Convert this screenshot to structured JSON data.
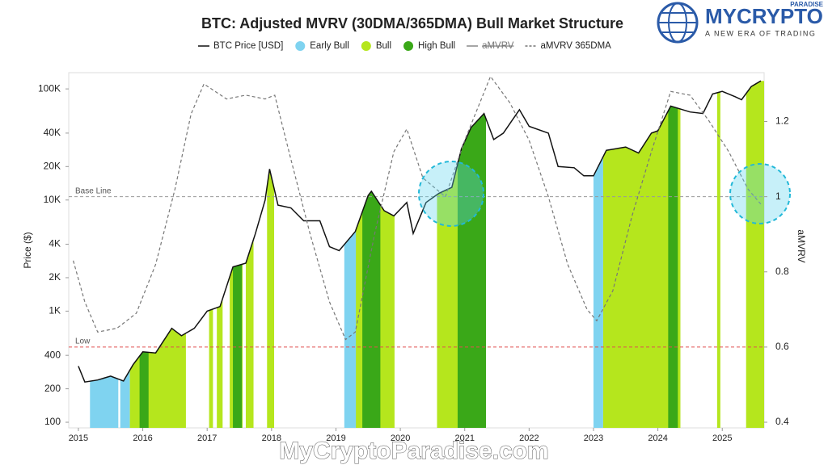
{
  "chart_data": {
    "type": "line",
    "title": "BTC: Adjusted MVRV (30DMA/365DMA) Bull Market Structure",
    "ylabel": "Price ($)",
    "y2label": "aMVRV",
    "log_y": true,
    "xlim": [
      2014.85,
      2025.65
    ],
    "xticks": [
      2015,
      2016,
      2017,
      2018,
      2019,
      2020,
      2021,
      2022,
      2023,
      2024,
      2025
    ],
    "ylim": [
      89,
      140000
    ],
    "yticks": [
      100,
      200,
      400,
      {
        "value": 1000,
        "label": "1K"
      },
      {
        "value": 2000,
        "label": "2K"
      },
      {
        "value": 4000,
        "label": "4K"
      },
      {
        "value": 10000,
        "label": "10K"
      },
      {
        "value": 20000,
        "label": "20K"
      },
      {
        "value": 40000,
        "label": "40K"
      },
      {
        "value": 100000,
        "label": "100K"
      }
    ],
    "y2lim": [
      0.385,
      1.33
    ],
    "y2ticks": [
      0.4,
      0.6,
      0.8,
      1,
      1.2
    ],
    "series": [
      {
        "name": "BTC Price [USD]",
        "color": "#111111",
        "style": "solid",
        "x": [
          2015.0,
          2015.1,
          2015.3,
          2015.5,
          2015.7,
          2015.85,
          2016.0,
          2016.2,
          2016.45,
          2016.6,
          2016.8,
          2017.0,
          2017.2,
          2017.4,
          2017.6,
          2017.75,
          2017.9,
          2017.97,
          2018.1,
          2018.3,
          2018.5,
          2018.75,
          2018.9,
          2019.05,
          2019.3,
          2019.5,
          2019.55,
          2019.75,
          2019.9,
          2020.1,
          2020.2,
          2020.4,
          2020.6,
          2020.8,
          2020.95,
          2021.1,
          2021.3,
          2021.45,
          2021.6,
          2021.85,
          2022.0,
          2022.3,
          2022.45,
          2022.7,
          2022.85,
          2023.0,
          2023.2,
          2023.5,
          2023.7,
          2023.9,
          2024.0,
          2024.2,
          2024.5,
          2024.7,
          2024.85,
          2025.0,
          2025.2,
          2025.3,
          2025.45,
          2025.6
        ],
        "values": [
          320,
          230,
          240,
          260,
          235,
          330,
          430,
          420,
          700,
          600,
          700,
          1000,
          1100,
          2500,
          2700,
          5000,
          10000,
          19000,
          9000,
          8500,
          6500,
          6500,
          3800,
          3500,
          5200,
          11000,
          12000,
          8000,
          7200,
          9500,
          5000,
          9500,
          11500,
          13000,
          29000,
          45000,
          60000,
          35000,
          40000,
          65000,
          46000,
          40000,
          20000,
          19500,
          16500,
          16500,
          28000,
          30000,
          26500,
          40000,
          42000,
          70000,
          62000,
          60000,
          90000,
          95000,
          85000,
          80000,
          105000,
          118000
        ]
      },
      {
        "name": "aMVRV",
        "color": "#888888",
        "style": "solid",
        "visible": false
      },
      {
        "name": "aMVRV 365DMA",
        "color": "#777777",
        "style": "dashed",
        "axis": "y2",
        "x": [
          2014.92,
          2015.1,
          2015.3,
          2015.6,
          2015.9,
          2016.2,
          2016.5,
          2016.75,
          2016.95,
          2017.3,
          2017.6,
          2017.9,
          2018.05,
          2018.3,
          2018.6,
          2018.9,
          2019.15,
          2019.3,
          2019.6,
          2019.9,
          2020.1,
          2020.35,
          2020.7,
          2021.0,
          2021.4,
          2021.7,
          2022.0,
          2022.3,
          2022.6,
          2022.9,
          2023.05,
          2023.3,
          2023.6,
          2023.9,
          2024.2,
          2024.5,
          2024.8,
          2025.1,
          2025.4,
          2025.6
        ],
        "values": [
          0.83,
          0.72,
          0.64,
          0.65,
          0.69,
          0.82,
          1.02,
          1.22,
          1.3,
          1.26,
          1.27,
          1.26,
          1.27,
          1.1,
          0.9,
          0.72,
          0.62,
          0.64,
          0.9,
          1.12,
          1.18,
          1.05,
          1.0,
          1.15,
          1.32,
          1.25,
          1.15,
          1.0,
          0.82,
          0.7,
          0.67,
          0.75,
          0.95,
          1.12,
          1.28,
          1.27,
          1.2,
          1.12,
          1.02,
          0.98
        ]
      }
    ],
    "regimes": [
      {
        "name": "Early Bull",
        "color": "#7fd3f0",
        "periods": [
          [
            2015.18,
            2015.62
          ],
          [
            2015.65,
            2015.8
          ],
          [
            2019.13,
            2019.33
          ],
          [
            2023.0,
            2023.15
          ]
        ]
      },
      {
        "name": "Bull",
        "color": "#b5e61d",
        "periods": [
          [
            2015.8,
            2016.67
          ],
          [
            2017.03,
            2017.09
          ],
          [
            2017.15,
            2017.24
          ],
          [
            2017.35,
            2017.55
          ],
          [
            2017.6,
            2017.72
          ],
          [
            2017.93,
            2018.04
          ],
          [
            2019.31,
            2019.91
          ],
          [
            2020.57,
            2021.33
          ],
          [
            2023.15,
            2024.35
          ],
          [
            2024.92,
            2024.97
          ],
          [
            2025.37,
            2025.65
          ]
        ]
      },
      {
        "name": "High Bull",
        "color": "#3aa818",
        "periods": [
          [
            2015.95,
            2016.09
          ],
          [
            2017.4,
            2017.54
          ],
          [
            2019.41,
            2019.69
          ],
          [
            2020.89,
            2021.33
          ],
          [
            2024.16,
            2024.31
          ]
        ]
      }
    ],
    "reference_lines": [
      {
        "label": "Base Line",
        "value": 1,
        "axis": "y2",
        "color": "#999999"
      },
      {
        "label": "Low",
        "value": 0.6,
        "axis": "y2",
        "color": "#e05050"
      }
    ]
  },
  "branding": {
    "name": "MYCRYPTO",
    "sub": "PARADISE",
    "tagline": "A NEW ERA OF TRADING",
    "watermark": "MyCryptoParadise.com"
  }
}
